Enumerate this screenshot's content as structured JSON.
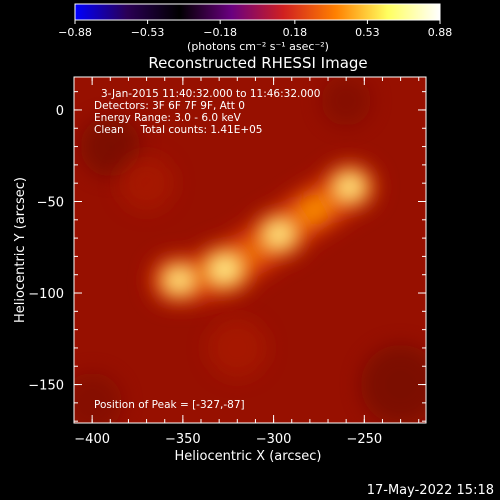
{
  "chart_data": {
    "type": "heatmap",
    "title": "Reconstructed RHESSI Image",
    "xlabel": "Heliocentric X (arcsec)",
    "ylabel": "Heliocentric Y (arcsec)",
    "xlim": [
      -410,
      -216
    ],
    "ylim": [
      -171,
      18
    ],
    "xticks": [
      -400,
      -350,
      -300,
      -250
    ],
    "yticks": [
      0,
      -50,
      -100,
      -150
    ],
    "annotations": [
      "3-Jan-2015 11:40:32.000 to 11:46:32.000",
      "Detectors: 3F 6F 7F 9F, Att 0",
      "Energy Range: 3.0 - 6.0 keV",
      "Clean     Total counts: 1.41E+05",
      "Position of Peak = [-327,-87]"
    ],
    "peak": [
      -327,
      -87
    ],
    "sources": [
      {
        "x": -327,
        "y": -87,
        "rel_intensity": 1.0
      },
      {
        "x": -297,
        "y": -68,
        "rel_intensity": 0.82
      },
      {
        "x": -258,
        "y": -42,
        "rel_intensity": 0.75
      },
      {
        "x": -352,
        "y": -93,
        "rel_intensity": 0.7
      }
    ],
    "colorbar": {
      "min": -0.88,
      "max": 0.88,
      "ticks": [
        "-0.88",
        "-0.53",
        "-0.18",
        "0.18",
        "0.53",
        "0.88"
      ],
      "label": "(photons cm⁻² s⁻¹ asec⁻²)",
      "colors": [
        "#0000ff",
        "#2a0055",
        "#000000",
        "#6a0080",
        "#d02020",
        "#ff8000",
        "#ffff60",
        "#ffffff"
      ]
    }
  },
  "footer": {
    "timestamp": "17-May-2022 15:18"
  }
}
